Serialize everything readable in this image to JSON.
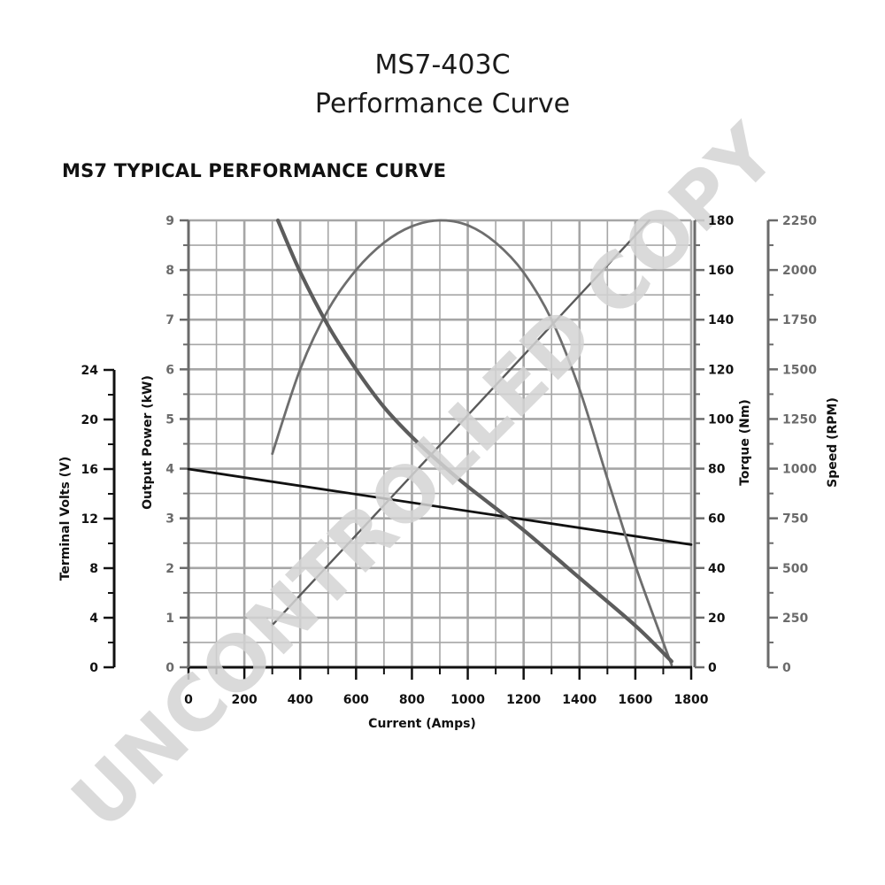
{
  "header": {
    "title_line1": "MS7-403C",
    "title_line2": "Performance Curve",
    "subtitle": "MS7 TYPICAL PERFORMANCE CURVE"
  },
  "watermark": "UNCONTROLLED COPY",
  "colors": {
    "grid": "#a6a6a6",
    "axis_dark": "#111111",
    "axis_gray": "#6b6b6b",
    "volts_line": "#111111",
    "power_line": "#6e6e6e",
    "torque_line": "#5a5a5a",
    "speed_line": "#5c5c5c",
    "watermark": "#d4d4d4"
  },
  "chart_data": {
    "type": "line",
    "xlabel": "Current (Amps)",
    "xlim": [
      0,
      1800
    ],
    "x_ticks": [
      "0",
      "200",
      "400",
      "600",
      "800",
      "1000",
      "1200",
      "1400",
      "1600",
      "1800"
    ],
    "axes": {
      "volts": {
        "label": "Terminal Volts (V)",
        "lim": [
          0,
          24
        ],
        "ticks": [
          "0",
          "4",
          "8",
          "12",
          "16",
          "20",
          "24"
        ]
      },
      "power": {
        "label": "Output Power (kW)",
        "lim": [
          0,
          9
        ],
        "ticks": [
          "0",
          "1",
          "2",
          "3",
          "4",
          "5",
          "6",
          "7",
          "8",
          "9"
        ]
      },
      "torque": {
        "label": "Torque (Nm)",
        "lim": [
          0,
          180
        ],
        "ticks": [
          "0",
          "20",
          "40",
          "60",
          "80",
          "100",
          "120",
          "140",
          "160",
          "180"
        ]
      },
      "speed": {
        "label": "Speed (RPM)",
        "lim": [
          0,
          2250
        ],
        "ticks": [
          "0",
          "250",
          "500",
          "750",
          "1000",
          "1250",
          "1500",
          "1750",
          "2000",
          "2250"
        ]
      }
    },
    "grid": true,
    "series": [
      {
        "axis": "volts",
        "x": [
          0,
          1800
        ],
        "y": [
          16.0,
          9.9
        ]
      },
      {
        "axis": "power",
        "x": [
          300,
          400,
          500,
          600,
          700,
          800,
          900,
          1000,
          1100,
          1200,
          1300,
          1400,
          1500,
          1600,
          1700,
          1730
        ],
        "y": [
          4.3,
          6.0,
          7.2,
          8.0,
          8.55,
          8.88,
          9.0,
          8.9,
          8.55,
          7.95,
          7.0,
          5.6,
          3.8,
          2.05,
          0.5,
          0.05
        ]
      },
      {
        "axis": "torque",
        "x": [
          300,
          1650
        ],
        "y": [
          17,
          180
        ]
      },
      {
        "axis": "speed",
        "x": [
          320,
          400,
          500,
          600,
          700,
          800,
          900,
          1000,
          1200,
          1400,
          1600,
          1730
        ],
        "y": [
          2250,
          1990,
          1720,
          1500,
          1310,
          1160,
          1030,
          910,
          690,
          450,
          210,
          30
        ]
      }
    ]
  }
}
